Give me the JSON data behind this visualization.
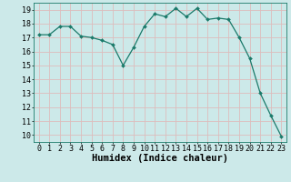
{
  "x": [
    0,
    1,
    2,
    3,
    4,
    5,
    6,
    7,
    8,
    9,
    10,
    11,
    12,
    13,
    14,
    15,
    16,
    17,
    18,
    19,
    20,
    21,
    22,
    23
  ],
  "y": [
    17.2,
    17.2,
    17.8,
    17.8,
    17.1,
    17.0,
    16.8,
    16.5,
    15.0,
    16.3,
    17.8,
    18.7,
    18.5,
    19.1,
    18.5,
    19.1,
    18.3,
    18.4,
    18.3,
    17.0,
    15.5,
    13.0,
    11.4,
    9.9
  ],
  "xlabel": "Humidex (Indice chaleur)",
  "ylim": [
    9.5,
    19.5
  ],
  "xlim": [
    -0.5,
    23.5
  ],
  "bg_color": "#cce9e9",
  "grid_color": "#ddbcbc",
  "line_color": "#1a7a6a",
  "marker_color": "#1a7a6a",
  "tick_fontsize": 6.0,
  "xlabel_fontsize": 7.5,
  "yticks": [
    10,
    11,
    12,
    13,
    14,
    15,
    16,
    17,
    18,
    19
  ],
  "xticks": [
    0,
    1,
    2,
    3,
    4,
    5,
    6,
    7,
    8,
    9,
    10,
    11,
    12,
    13,
    14,
    15,
    16,
    17,
    18,
    19,
    20,
    21,
    22,
    23
  ]
}
